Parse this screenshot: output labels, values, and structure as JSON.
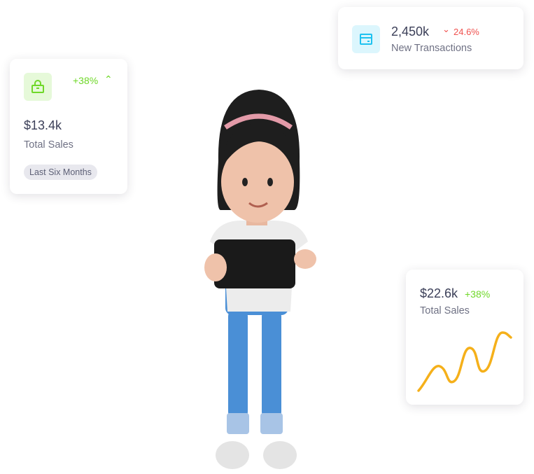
{
  "sales_card": {
    "change": "+38%",
    "value": "$13.4k",
    "label": "Total Sales",
    "period": "Last Six Months",
    "icon": "shopping-bag-icon",
    "accent": "#6fd828"
  },
  "transactions_card": {
    "value": "2,450k",
    "change": "24.6%",
    "label": "New Transactions",
    "icon": "credit-card-icon",
    "accent": "#1ec2f0",
    "change_color": "#f0524f"
  },
  "sales_chart_card": {
    "value": "$22.6k",
    "change": "+38%",
    "label": "Total Sales",
    "line_color": "#f5b01a"
  }
}
